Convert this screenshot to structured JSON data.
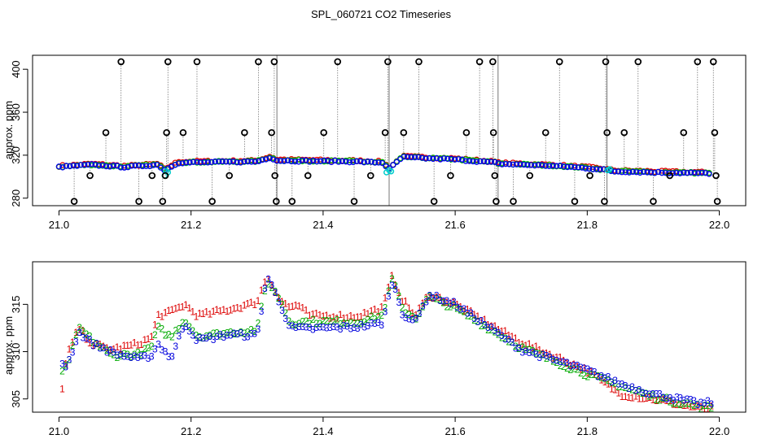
{
  "figure": {
    "title": "SPL_060721  CO2 Timeseries"
  },
  "chart_data": [
    {
      "type": "scatter",
      "name": "top-panel",
      "ylabel": "approx. ppm",
      "xlabel": "",
      "xlim": [
        20.96,
        22.04
      ],
      "ylim": [
        273,
        413
      ],
      "xticks": [
        21.0,
        21.2,
        21.4,
        21.6,
        21.8,
        22.0
      ],
      "xtick_labels": [
        "21.0",
        "21.2",
        "21.4",
        "21.6",
        "21.8",
        "22.0"
      ],
      "yticks": [
        280,
        320,
        360,
        400
      ],
      "ytick_labels": [
        "280",
        "320",
        "360",
        "400"
      ],
      "segment_breaks": [
        21.33,
        21.5,
        21.665,
        21.83
      ],
      "baseline_knots": [
        [
          21.0,
          309
        ],
        [
          21.05,
          311
        ],
        [
          21.1,
          309
        ],
        [
          21.15,
          311
        ],
        [
          21.16,
          306
        ],
        [
          21.18,
          313
        ],
        [
          21.3,
          314
        ],
        [
          21.32,
          318
        ],
        [
          21.33,
          315
        ],
        [
          21.45,
          314
        ],
        [
          21.49,
          313
        ],
        [
          21.5,
          307
        ],
        [
          21.52,
          318
        ],
        [
          21.6,
          316
        ],
        [
          21.66,
          313
        ],
        [
          21.665,
          312
        ],
        [
          21.75,
          310
        ],
        [
          21.8,
          308
        ],
        [
          21.83,
          306
        ],
        [
          21.84,
          305
        ],
        [
          21.9,
          304
        ],
        [
          21.99,
          303
        ]
      ],
      "outliers": [
        {
          "x": 21.023,
          "y": 277
        },
        {
          "x": 21.047,
          "y": 301
        },
        {
          "x": 21.071,
          "y": 341
        },
        {
          "x": 21.094,
          "y": 407
        },
        {
          "x": 21.121,
          "y": 277
        },
        {
          "x": 21.141,
          "y": 301
        },
        {
          "x": 21.157,
          "y": 277
        },
        {
          "x": 21.161,
          "y": 301
        },
        {
          "x": 21.163,
          "y": 341
        },
        {
          "x": 21.165,
          "y": 407
        },
        {
          "x": 21.188,
          "y": 341
        },
        {
          "x": 21.209,
          "y": 407
        },
        {
          "x": 21.232,
          "y": 277
        },
        {
          "x": 21.258,
          "y": 301
        },
        {
          "x": 21.281,
          "y": 341
        },
        {
          "x": 21.302,
          "y": 407
        },
        {
          "x": 21.322,
          "y": 341
        },
        {
          "x": 21.326,
          "y": 407
        },
        {
          "x": 21.327,
          "y": 301
        },
        {
          "x": 21.329,
          "y": 277
        },
        {
          "x": 21.353,
          "y": 277
        },
        {
          "x": 21.377,
          "y": 301
        },
        {
          "x": 21.401,
          "y": 341
        },
        {
          "x": 21.422,
          "y": 407
        },
        {
          "x": 21.447,
          "y": 277
        },
        {
          "x": 21.472,
          "y": 301
        },
        {
          "x": 21.494,
          "y": 341
        },
        {
          "x": 21.498,
          "y": 407
        },
        {
          "x": 21.522,
          "y": 341
        },
        {
          "x": 21.545,
          "y": 407
        },
        {
          "x": 21.568,
          "y": 277
        },
        {
          "x": 21.593,
          "y": 301
        },
        {
          "x": 21.617,
          "y": 341
        },
        {
          "x": 21.637,
          "y": 407
        },
        {
          "x": 21.657,
          "y": 407
        },
        {
          "x": 21.658,
          "y": 341
        },
        {
          "x": 21.66,
          "y": 301
        },
        {
          "x": 21.662,
          "y": 277
        },
        {
          "x": 21.688,
          "y": 277
        },
        {
          "x": 21.713,
          "y": 301
        },
        {
          "x": 21.737,
          "y": 341
        },
        {
          "x": 21.758,
          "y": 407
        },
        {
          "x": 21.781,
          "y": 277
        },
        {
          "x": 21.804,
          "y": 301
        },
        {
          "x": 21.826,
          "y": 277
        },
        {
          "x": 21.828,
          "y": 407
        },
        {
          "x": 21.83,
          "y": 341
        },
        {
          "x": 21.856,
          "y": 341
        },
        {
          "x": 21.877,
          "y": 407
        },
        {
          "x": 21.9,
          "y": 277
        },
        {
          "x": 21.925,
          "y": 301
        },
        {
          "x": 21.946,
          "y": 341
        },
        {
          "x": 21.967,
          "y": 407
        },
        {
          "x": 21.991,
          "y": 407
        },
        {
          "x": 21.993,
          "y": 341
        },
        {
          "x": 21.995,
          "y": 301
        },
        {
          "x": 21.997,
          "y": 277
        }
      ],
      "series": [
        {
          "name": "1",
          "color": "#dd0000",
          "offset": 0.9
        },
        {
          "name": "2",
          "color": "#00bb00",
          "offset": 0.3
        },
        {
          "name": "3",
          "color": "#0000ee",
          "offset": 0.0
        }
      ],
      "cyan_points": [
        {
          "x": 21.16,
          "y": 301
        },
        {
          "x": 21.162,
          "y": 305
        },
        {
          "x": 21.165,
          "y": 304
        },
        {
          "x": 21.496,
          "y": 304
        },
        {
          "x": 21.5,
          "y": 306
        },
        {
          "x": 21.503,
          "y": 305
        },
        {
          "x": 21.831,
          "y": 306
        },
        {
          "x": 21.834,
          "y": 307
        }
      ]
    },
    {
      "type": "scatter",
      "name": "bottom-panel",
      "ylabel": "approx. ppm",
      "xlabel": "",
      "xlim": [
        20.96,
        22.04
      ],
      "ylim": [
        303.6,
        319.5
      ],
      "xticks": [
        21.0,
        21.2,
        21.4,
        21.6,
        21.8,
        22.0
      ],
      "xtick_labels": [
        "21.0",
        "21.2",
        "21.4",
        "21.6",
        "21.8",
        "22.0"
      ],
      "yticks": [
        305,
        310,
        315
      ],
      "ytick_labels": [
        "305",
        "310",
        "315"
      ],
      "series": [
        {
          "name": "1",
          "color": "#dd0000",
          "knots": [
            [
              21.005,
              306.0
            ],
            [
              21.012,
              309.5
            ],
            [
              21.03,
              312.5
            ],
            [
              21.05,
              310.8
            ],
            [
              21.08,
              310.2
            ],
            [
              21.12,
              310.8
            ],
            [
              21.14,
              311.5
            ],
            [
              21.15,
              313.8
            ],
            [
              21.17,
              314.2
            ],
            [
              21.19,
              315.0
            ],
            [
              21.21,
              313.8
            ],
            [
              21.26,
              314.5
            ],
            [
              21.3,
              315.2
            ],
            [
              21.315,
              318.0
            ],
            [
              21.335,
              315.5
            ],
            [
              21.35,
              314.6
            ],
            [
              21.36,
              315.0
            ],
            [
              21.38,
              313.8
            ],
            [
              21.45,
              313.7
            ],
            [
              21.49,
              314.6
            ],
            [
              21.505,
              318.0
            ],
            [
              21.52,
              315.5
            ],
            [
              21.54,
              313.8
            ],
            [
              21.56,
              316.0
            ],
            [
              21.6,
              315.0
            ],
            [
              21.7,
              311.0
            ],
            [
              21.8,
              308.0
            ],
            [
              21.85,
              305.5
            ],
            [
              21.9,
              305.0
            ],
            [
              21.97,
              304.0
            ],
            [
              21.995,
              304.0
            ]
          ]
        },
        {
          "name": "2",
          "color": "#00aa00",
          "knots": [
            [
              21.005,
              307.8
            ],
            [
              21.012,
              308.5
            ],
            [
              21.03,
              312.5
            ],
            [
              21.05,
              311.2
            ],
            [
              21.08,
              309.6
            ],
            [
              21.12,
              309.7
            ],
            [
              21.14,
              310.5
            ],
            [
              21.15,
              312.5
            ],
            [
              21.17,
              311.5
            ],
            [
              21.19,
              313.4
            ],
            [
              21.21,
              311.6
            ],
            [
              21.26,
              312.0
            ],
            [
              21.3,
              312.3
            ],
            [
              21.315,
              317.5
            ],
            [
              21.335,
              315.5
            ],
            [
              21.35,
              313.0
            ],
            [
              21.38,
              313.2
            ],
            [
              21.45,
              313.1
            ],
            [
              21.49,
              313.8
            ],
            [
              21.505,
              317.8
            ],
            [
              21.52,
              314.5
            ],
            [
              21.54,
              313.5
            ],
            [
              21.56,
              315.8
            ],
            [
              21.6,
              314.6
            ],
            [
              21.7,
              310.4
            ],
            [
              21.8,
              307.6
            ],
            [
              21.85,
              306.4
            ],
            [
              21.9,
              305.2
            ],
            [
              21.97,
              304.2
            ],
            [
              21.995,
              304.0
            ]
          ]
        },
        {
          "name": "3",
          "color": "#0000dd",
          "knots": [
            [
              21.005,
              308.8
            ],
            [
              21.012,
              308.4
            ],
            [
              21.03,
              312.0
            ],
            [
              21.05,
              310.9
            ],
            [
              21.08,
              309.9
            ],
            [
              21.12,
              309.2
            ],
            [
              21.14,
              309.6
            ],
            [
              21.15,
              310.8
            ],
            [
              21.17,
              309.3
            ],
            [
              21.19,
              313.0
            ],
            [
              21.21,
              311.2
            ],
            [
              21.26,
              311.8
            ],
            [
              21.3,
              311.7
            ],
            [
              21.315,
              318.0
            ],
            [
              21.335,
              315.0
            ],
            [
              21.35,
              312.5
            ],
            [
              21.38,
              312.4
            ],
            [
              21.45,
              312.6
            ],
            [
              21.49,
              313.0
            ],
            [
              21.505,
              317.5
            ],
            [
              21.52,
              314.0
            ],
            [
              21.54,
              313.2
            ],
            [
              21.56,
              316.0
            ],
            [
              21.6,
              315.0
            ],
            [
              21.7,
              310.2
            ],
            [
              21.8,
              308.0
            ],
            [
              21.85,
              306.6
            ],
            [
              21.9,
              305.5
            ],
            [
              21.97,
              304.5
            ],
            [
              21.995,
              304.6
            ]
          ]
        }
      ]
    }
  ]
}
